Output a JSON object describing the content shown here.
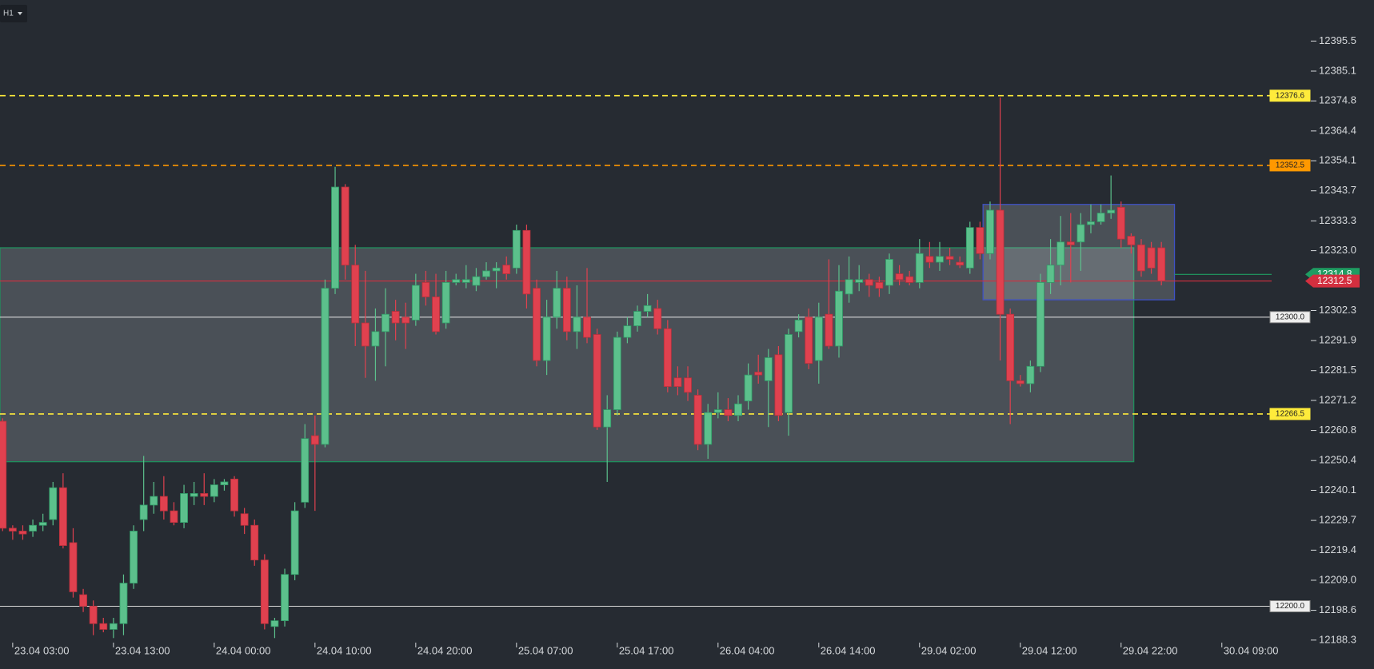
{
  "chart_data": {
    "type": "candlestick",
    "timeframe": "H1",
    "up_color": "#5cc08c",
    "down_color": "#e0414f",
    "background": "#262b32",
    "xlim": [
      -0.26,
      136.1
    ],
    "ylim": [
      12178.3,
      12409.7
    ],
    "xticks": [
      {
        "value": 1,
        "label": "23.04 03:00"
      },
      {
        "value": 11,
        "label": "23.04 13:00"
      },
      {
        "value": 21,
        "label": "24.04 00:00"
      },
      {
        "value": 31,
        "label": "24.04 10:00"
      },
      {
        "value": 41,
        "label": "24.04 20:00"
      },
      {
        "value": 51,
        "label": "25.04 07:00"
      },
      {
        "value": 61,
        "label": "25.04 17:00"
      },
      {
        "value": 71,
        "label": "26.04 04:00"
      },
      {
        "value": 81,
        "label": "26.04 14:00"
      },
      {
        "value": 91,
        "label": "29.04 02:00"
      },
      {
        "value": 101,
        "label": "29.04 12:00"
      },
      {
        "value": 111,
        "label": "29.04 22:00"
      },
      {
        "value": 121,
        "label": "30.04 09:00"
      }
    ],
    "yticks": [
      12395.5,
      12385.1,
      12374.8,
      12364.4,
      12354.1,
      12343.7,
      12333.3,
      {
        "value": 12323,
        "label": "12323.0"
      },
      12302.3,
      12291.9,
      12281.5,
      12271.2,
      12260.8,
      12250.4,
      12240.1,
      12229.7,
      12219.4,
      {
        "value": 12209,
        "label": "12209.0"
      },
      12198.6,
      12188.3
    ],
    "open": [
      12264,
      12227,
      12226,
      12226,
      12228,
      12230,
      12241,
      12222,
      12204,
      12200,
      12194,
      12192,
      12194,
      12208,
      12230,
      12235,
      12238,
      12233,
      12229,
      12238,
      12239,
      12238,
      12242,
      12244,
      12232,
      12228,
      12216,
      12193,
      12195,
      12211,
      12236,
      12259,
      12256,
      12310,
      12345,
      12318,
      12298,
      12290,
      12295,
      12302,
      12300,
      12299,
      12312,
      12307,
      12298,
      12312,
      12312,
      12311,
      12314,
      12316,
      12318,
      12317,
      12330,
      12310,
      12285,
      12300,
      12310,
      12295,
      12300,
      12294,
      12262,
      12268,
      12293,
      12297,
      12302,
      12303,
      12296,
      12279,
      12279,
      12273,
      12256,
      12267,
      12268,
      12266,
      12271,
      12281,
      12278,
      12287,
      12267,
      12295,
      12300,
      12285,
      12301,
      12290,
      12308,
      12312,
      12313,
      12312,
      12311,
      12315,
      12314,
      12312,
      12321,
      12319,
      12321,
      12319,
      12317,
      12331,
      12322,
      12337,
      12301,
      12278,
      12277,
      12283,
      12312,
      12318,
      12326,
      12326,
      12332,
      12333,
      12336,
      12338,
      12328,
      12325,
      12324,
      12324
    ],
    "high": [
      12265,
      12228,
      12228,
      12230,
      12232,
      12243,
      12246,
      12227,
      12206,
      12202,
      12196,
      12196,
      12211,
      12228,
      12252,
      12243,
      12245,
      12236,
      12242,
      12243,
      12246,
      12244,
      12244,
      12245,
      12234,
      12230,
      12218,
      12196,
      12213,
      12236,
      12263,
      12266,
      12313,
      12352,
      12346,
      12325,
      12316,
      12303,
      12310,
      12306,
      12305,
      12315,
      12316,
      12315,
      12316,
      12315,
      12318,
      12317,
      12319,
      12319,
      12321,
      12332,
      12332,
      12313,
      12306,
      12316,
      12314,
      12311,
      12317,
      12296,
      12273,
      12295,
      12300,
      12304,
      12308,
      12306,
      12299,
      12283,
      12283,
      12275,
      12270,
      12274,
      12272,
      12273,
      12284,
      12287,
      12289,
      12290,
      12296,
      12301,
      12303,
      12305,
      12320,
      12318,
      12321,
      12318,
      12315,
      12314,
      12322,
      12318,
      12316,
      12327,
      12326,
      12326,
      12324,
      12321,
      12333,
      12333,
      12340,
      12376,
      12303,
      12280,
      12285,
      12315,
      12327,
      12335,
      12336,
      12336,
      12339,
      12339,
      12349,
      12340,
      12329,
      12327,
      12326,
      12326
    ],
    "low": [
      12226,
      12223,
      12223,
      12224,
      12226,
      12228,
      12220,
      12203,
      12198,
      12190,
      12191,
      12189,
      12190,
      12206,
      12226,
      12232,
      12230,
      12228,
      12227,
      12235,
      12235,
      12236,
      12240,
      12231,
      12225,
      12214,
      12192,
      12189,
      12193,
      12209,
      12234,
      12233,
      12255,
      12308,
      12313,
      12290,
      12279,
      12278,
      12283,
      12292,
      12289,
      12297,
      12304,
      12294,
      12296,
      12311,
      12310,
      12309,
      12313,
      12310,
      12313,
      12315,
      12303,
      12283,
      12280,
      12296,
      12292,
      12289,
      12291,
      12261,
      12243,
      12266,
      12291,
      12295,
      12300,
      12294,
      12274,
      12273,
      12271,
      12254,
      12251,
      12265,
      12264,
      12264,
      12268,
      12277,
      12262,
      12264,
      12259,
      12293,
      12282,
      12277,
      12289,
      12286,
      12305,
      12309,
      12307,
      12307,
      12308,
      12311,
      12311,
      12310,
      12317,
      12316,
      12318,
      12317,
      12315,
      12320,
      12320,
      12285,
      12263,
      12276,
      12274,
      12281,
      12308,
      12311,
      12312,
      12316,
      12329,
      12332,
      12334,
      12324,
      12322,
      12314,
      12315,
      12311
    ],
    "close": [
      12227,
      12226,
      12225,
      12228,
      12229,
      12241,
      12221,
      12205,
      12200,
      12194,
      12192,
      12194,
      12208,
      12226,
      12235,
      12238,
      12233,
      12229,
      12239,
      12239,
      12238,
      12242,
      12243,
      12233,
      12228,
      12216,
      12194,
      12195,
      12211,
      12233,
      12258,
      12256,
      12310,
      12345,
      12318,
      12298,
      12290,
      12295,
      12301,
      12298,
      12298,
      12311,
      12307,
      12295,
      12312,
      12313,
      12313,
      12314,
      12316,
      12317,
      12315,
      12330,
      12308,
      12285,
      12300,
      12310,
      12295,
      12300,
      12293,
      12262,
      12268,
      12293,
      12297,
      12302,
      12304,
      12296,
      12276,
      12276,
      12274,
      12256,
      12267,
      12268,
      12266,
      12270,
      12280,
      12280,
      12286,
      12266,
      12294,
      12299,
      12284,
      12300,
      12290,
      12309,
      12313,
      12313,
      12311,
      12310,
      12320,
      12313,
      12312,
      12322,
      12319,
      12321,
      12320,
      12318,
      12331,
      12322,
      12337,
      12301,
      12278,
      12277,
      12283,
      12312,
      12318,
      12326,
      12325,
      12332,
      12333,
      12336,
      12337,
      12327,
      12325,
      12316,
      12317,
      12312.5
    ],
    "zones": [
      {
        "top": 12324,
        "bottom": 12250,
        "start": -0.26,
        "end": 112.26,
        "color": "#1f8f5c"
      },
      {
        "top": 12339,
        "bottom": 12306,
        "start": 97.3,
        "end": 116.3,
        "color": "#3f51c5"
      }
    ],
    "levels": [
      {
        "price": 12376.6,
        "label": "12376.6",
        "color": "#ffeb3b",
        "style": "dashed"
      },
      {
        "price": 12352.5,
        "label": "12352.5",
        "color": "#ff9800",
        "style": "dashed"
      },
      {
        "price": 12314.8,
        "label": "12314.8",
        "color": "#1f9d62",
        "style": "solid",
        "start": 116.3,
        "tag": "arrow"
      },
      {
        "price": 12312.5,
        "label": "12312.5",
        "color": "#d32f3f",
        "style": "solid",
        "tag": "arrow"
      },
      {
        "price": 12300,
        "label": "12300.0",
        "color": "#d8d8d8",
        "style": "solid"
      },
      {
        "price": 12266.5,
        "label": "12266.5",
        "color": "#ffeb3b",
        "style": "dashed"
      },
      {
        "price": 12200,
        "label": "12200.0",
        "color": "#d8d8d8",
        "style": "solid"
      }
    ]
  }
}
